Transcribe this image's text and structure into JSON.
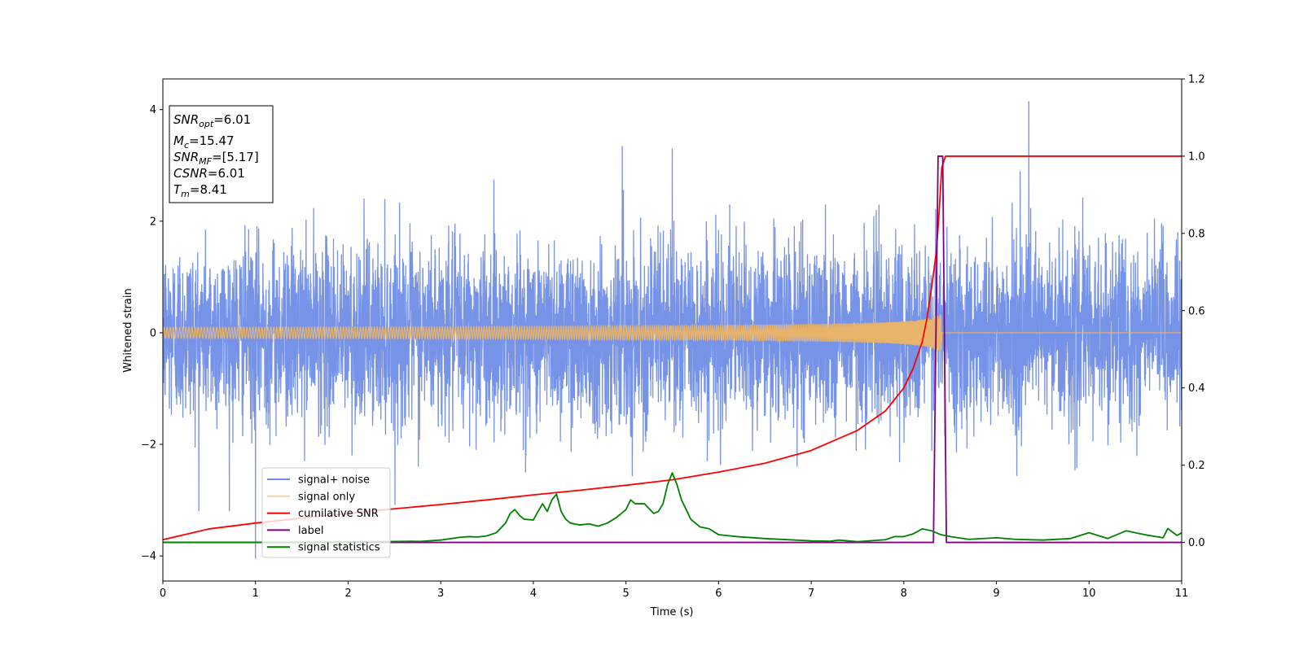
{
  "chart_data": {
    "type": "line",
    "xlabel": "Time (s)",
    "ylabel": "Whitened strain",
    "xlim": [
      0,
      11
    ],
    "ylim_left": [
      -4.45,
      4.55
    ],
    "ylim_right": [
      -0.1,
      1.2
    ],
    "x_ticks": [
      "0",
      "1",
      "2",
      "3",
      "4",
      "5",
      "6",
      "7",
      "8",
      "9",
      "10",
      "11"
    ],
    "y_ticks_left": [
      "4",
      "2",
      "0",
      "−2",
      "−4"
    ],
    "y_ticks_right": [
      "1.2",
      "1.0",
      "0.8",
      "0.6",
      "0.4",
      "0.2",
      "0.0"
    ],
    "annotation": {
      "snr_opt_value": "6.01",
      "mc_value": "15.47",
      "snr_mf_value": "[5.17]",
      "csnr_value": "6.01",
      "tm_value": "8.41"
    },
    "legend": {
      "placement": "lower-left",
      "entries": [
        "signal+ noise",
        "signal only",
        "cumilative SNR",
        "label",
        "signal statistics"
      ]
    },
    "series": [
      {
        "name": "signal+ noise",
        "axis": "left",
        "color": "#6f8de6",
        "kind": "noise",
        "amplitude_std": 0.8,
        "notable_spikes": [
          [
            1.0,
            -4.05
          ],
          [
            9.35,
            4.15
          ],
          [
            4.96,
            3.35
          ],
          [
            5.5,
            3.3
          ]
        ]
      },
      {
        "name": "signal only",
        "axis": "left",
        "color": "#e8b36a",
        "kind": "chirp",
        "merger_time": 8.41,
        "peak_amplitude": 0.45
      },
      {
        "name": "cumilative SNR",
        "axis": "right",
        "color": "#ff0000",
        "x": [
          0,
          0.5,
          1,
          1.5,
          2,
          2.5,
          3,
          3.5,
          4,
          4.5,
          5,
          5.5,
          6,
          6.5,
          7,
          7.5,
          7.8,
          8.0,
          8.1,
          8.2,
          8.25,
          8.3,
          8.35,
          8.38,
          8.41,
          8.45,
          11
        ],
        "y": [
          0.007,
          0.035,
          0.05,
          0.063,
          0.075,
          0.087,
          0.098,
          0.11,
          0.123,
          0.135,
          0.148,
          0.162,
          0.182,
          0.205,
          0.238,
          0.29,
          0.34,
          0.4,
          0.45,
          0.52,
          0.58,
          0.66,
          0.75,
          0.85,
          0.97,
          1.0,
          1.0
        ]
      },
      {
        "name": "label",
        "axis": "right",
        "color": "#800080",
        "x": [
          0,
          8.32,
          8.37,
          8.42,
          8.46,
          11
        ],
        "y": [
          0.0,
          0.0,
          1.0,
          1.0,
          0.0,
          0.0
        ]
      },
      {
        "name": "signal statistics",
        "axis": "right",
        "color": "#008000",
        "x": [
          0,
          1,
          2,
          2.8,
          3.0,
          3.2,
          3.3,
          3.4,
          3.5,
          3.6,
          3.7,
          3.75,
          3.8,
          3.85,
          3.9,
          4.0,
          4.05,
          4.1,
          4.15,
          4.2,
          4.25,
          4.3,
          4.35,
          4.4,
          4.5,
          4.6,
          4.7,
          4.8,
          4.9,
          5.0,
          5.05,
          5.1,
          5.2,
          5.3,
          5.35,
          5.4,
          5.45,
          5.5,
          5.55,
          5.6,
          5.65,
          5.7,
          5.75,
          5.8,
          5.9,
          6.0,
          6.2,
          6.5,
          7.0,
          7.2,
          7.3,
          7.5,
          7.8,
          7.9,
          8.0,
          8.1,
          8.2,
          8.3,
          8.4,
          8.5,
          8.7,
          9.0,
          9.2,
          9.5,
          9.8,
          10.0,
          10.2,
          10.4,
          10.6,
          10.8,
          10.85,
          10.95,
          11.0
        ],
        "y": [
          0.0,
          0.0,
          0.001,
          0.003,
          0.006,
          0.013,
          0.015,
          0.014,
          0.017,
          0.025,
          0.05,
          0.075,
          0.085,
          0.07,
          0.06,
          0.058,
          0.08,
          0.1,
          0.08,
          0.11,
          0.125,
          0.08,
          0.06,
          0.05,
          0.045,
          0.048,
          0.042,
          0.05,
          0.065,
          0.085,
          0.11,
          0.1,
          0.1,
          0.075,
          0.08,
          0.1,
          0.15,
          0.18,
          0.15,
          0.11,
          0.085,
          0.06,
          0.05,
          0.04,
          0.035,
          0.02,
          0.015,
          0.01,
          0.004,
          0.003,
          0.006,
          0.002,
          0.007,
          0.015,
          0.015,
          0.022,
          0.035,
          0.03,
          0.02,
          0.015,
          0.008,
          0.012,
          0.008,
          0.006,
          0.01,
          0.025,
          0.01,
          0.03,
          0.02,
          0.012,
          0.036,
          0.018,
          0.025
        ]
      }
    ]
  }
}
